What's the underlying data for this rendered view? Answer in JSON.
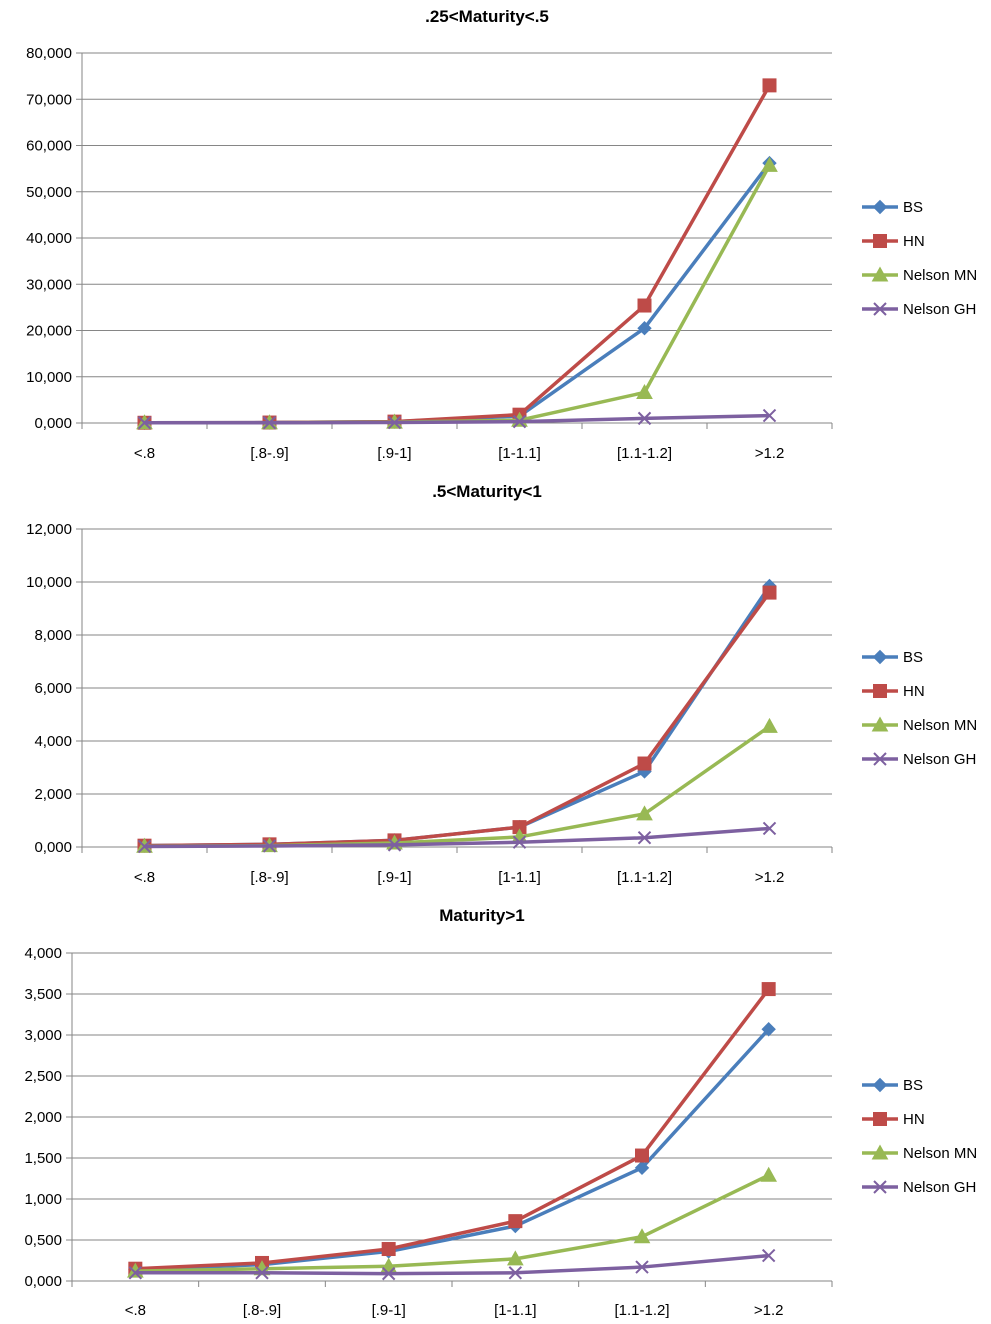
{
  "colors": {
    "BS": "#4a7ebb",
    "HN": "#be4b48",
    "Nelson MN": "#98b954",
    "Nelson GH": "#7d60a0",
    "grid": "#868686",
    "axis": "#868686"
  },
  "marker_icons": {
    "BS": "diamond-icon",
    "HN": "square-icon",
    "Nelson MN": "triangle-icon",
    "Nelson GH": "x-icon"
  },
  "chart_data": [
    {
      "type": "line",
      "title": ".25<Maturity<.5",
      "categories": [
        "<.8",
        "[.8-.9]",
        "[.9-1]",
        "[1-1.1]",
        "[1.1-1.2]",
        ">1.2"
      ],
      "ylim": [
        0,
        80
      ],
      "yticks": [
        0,
        10,
        20,
        30,
        40,
        50,
        60,
        70,
        80
      ],
      "ytick_labels": [
        "0,000",
        "10,000",
        "20,000",
        "30,000",
        "40,000",
        "50,000",
        "60,000",
        "70,000",
        "80,000"
      ],
      "grid": true,
      "legend": "right",
      "series": [
        {
          "name": "BS",
          "values": [
            0.05,
            0.1,
            0.3,
            1.5,
            20.5,
            56.2
          ]
        },
        {
          "name": "HN",
          "values": [
            0.05,
            0.1,
            0.3,
            1.8,
            25.4,
            73.0
          ]
        },
        {
          "name": "Nelson MN",
          "values": [
            0.05,
            0.05,
            0.2,
            0.6,
            6.6,
            55.7
          ]
        },
        {
          "name": "Nelson GH",
          "values": [
            0.05,
            0.05,
            0.1,
            0.3,
            1.0,
            1.6
          ]
        }
      ]
    },
    {
      "type": "line",
      "title": ".5<Maturity<1",
      "categories": [
        "<.8",
        "[.8-.9]",
        "[.9-1]",
        "[1-1.1]",
        "[1.1-1.2]",
        ">1.2"
      ],
      "ylim": [
        0,
        12
      ],
      "yticks": [
        0,
        2,
        4,
        6,
        8,
        10,
        12
      ],
      "ytick_labels": [
        "0,000",
        "2,000",
        "4,000",
        "6,000",
        "8,000",
        "10,000",
        "12,000"
      ],
      "grid": true,
      "legend": "right",
      "series": [
        {
          "name": "BS",
          "values": [
            0.05,
            0.1,
            0.25,
            0.75,
            2.85,
            9.85
          ]
        },
        {
          "name": "HN",
          "values": [
            0.05,
            0.1,
            0.25,
            0.75,
            3.15,
            9.6
          ]
        },
        {
          "name": "Nelson MN",
          "values": [
            0.03,
            0.05,
            0.15,
            0.38,
            1.25,
            4.55
          ]
        },
        {
          "name": "Nelson GH",
          "values": [
            0.02,
            0.04,
            0.08,
            0.18,
            0.35,
            0.7
          ]
        }
      ]
    },
    {
      "type": "line",
      "title": "Maturity>1",
      "categories": [
        "<.8",
        "[.8-.9]",
        "[.9-1]",
        "[1-1.1]",
        "[1.1-1.2]",
        ">1.2"
      ],
      "ylim": [
        0,
        4
      ],
      "yticks": [
        0,
        0.5,
        1,
        1.5,
        2,
        2.5,
        3,
        3.5,
        4
      ],
      "ytick_labels": [
        "0,000",
        "0,500",
        "1,000",
        "1,500",
        "2,000",
        "2,500",
        "3,000",
        "3,500",
        "4,000"
      ],
      "grid": true,
      "legend": "right",
      "series": [
        {
          "name": "BS",
          "values": [
            0.14,
            0.2,
            0.36,
            0.67,
            1.38,
            3.07
          ]
        },
        {
          "name": "HN",
          "values": [
            0.15,
            0.22,
            0.39,
            0.73,
            1.53,
            3.56
          ]
        },
        {
          "name": "Nelson MN",
          "values": [
            0.12,
            0.15,
            0.18,
            0.27,
            0.54,
            1.29
          ]
        },
        {
          "name": "Nelson GH",
          "values": [
            0.1,
            0.1,
            0.09,
            0.1,
            0.17,
            0.31
          ]
        }
      ]
    }
  ]
}
